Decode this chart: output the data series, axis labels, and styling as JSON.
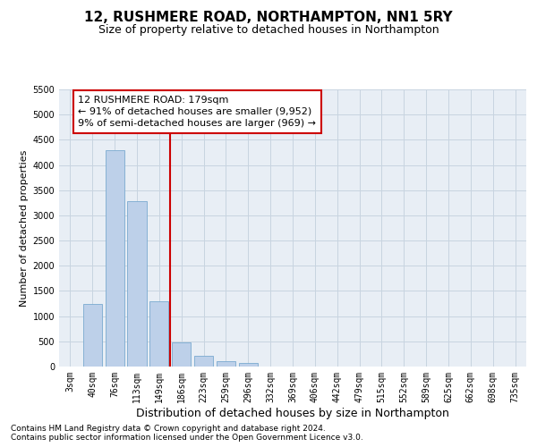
{
  "title": "12, RUSHMERE ROAD, NORTHAMPTON, NN1 5RY",
  "subtitle": "Size of property relative to detached houses in Northampton",
  "xlabel": "Distribution of detached houses by size in Northampton",
  "ylabel": "Number of detached properties",
  "footnote1": "Contains HM Land Registry data © Crown copyright and database right 2024.",
  "footnote2": "Contains public sector information licensed under the Open Government Licence v3.0.",
  "categories": [
    "3sqm",
    "40sqm",
    "76sqm",
    "113sqm",
    "149sqm",
    "186sqm",
    "223sqm",
    "259sqm",
    "296sqm",
    "332sqm",
    "369sqm",
    "406sqm",
    "442sqm",
    "479sqm",
    "515sqm",
    "552sqm",
    "589sqm",
    "625sqm",
    "662sqm",
    "698sqm",
    "735sqm"
  ],
  "values": [
    0,
    1250,
    4300,
    3280,
    1300,
    480,
    215,
    105,
    70,
    0,
    0,
    0,
    0,
    0,
    0,
    0,
    0,
    0,
    0,
    0,
    0
  ],
  "bar_color": "#bdd0e9",
  "bar_edge_color": "#7aaad0",
  "property_line_x": 4.5,
  "property_line_color": "#cc0000",
  "annotation_line1": "12 RUSHMERE ROAD: 179sqm",
  "annotation_line2": "← 91% of detached houses are smaller (9,952)",
  "annotation_line3": "9% of semi-detached houses are larger (969) →",
  "annotation_box_color": "#cc0000",
  "ylim": [
    0,
    5500
  ],
  "yticks": [
    0,
    500,
    1000,
    1500,
    2000,
    2500,
    3000,
    3500,
    4000,
    4500,
    5000,
    5500
  ],
  "grid_color": "#c8d4e0",
  "background_color": "#e8eef5",
  "title_fontsize": 11,
  "subtitle_fontsize": 9,
  "xlabel_fontsize": 9,
  "ylabel_fontsize": 8,
  "tick_fontsize": 7,
  "annotation_fontsize": 8,
  "footnote_fontsize": 6.5
}
